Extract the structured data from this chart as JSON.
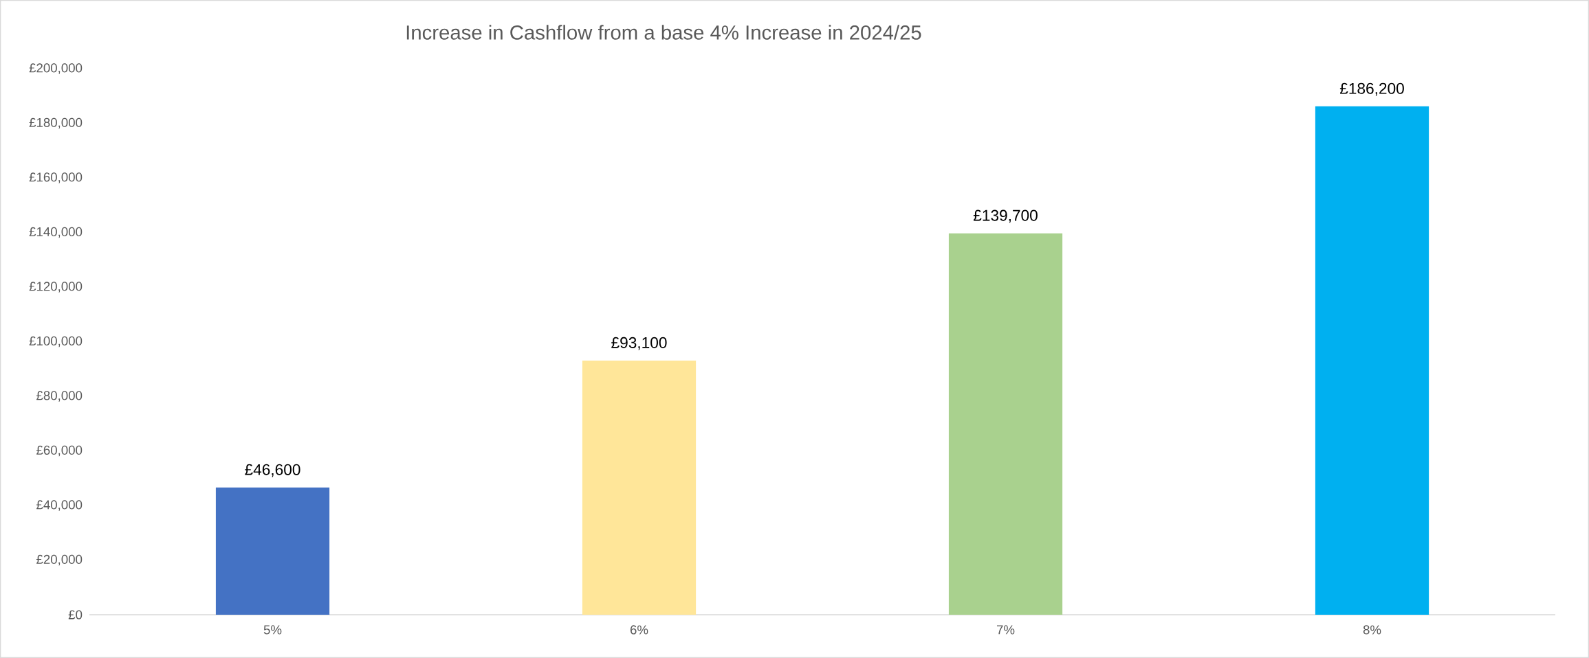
{
  "chart_data": {
    "type": "bar",
    "title": "Increase in Cashflow from a base 4% Increase in 2024/25",
    "categories": [
      "5%",
      "6%",
      "7%",
      "8%"
    ],
    "values": [
      46600,
      93100,
      139700,
      186200
    ],
    "colors": [
      "#4472c4",
      "#ffe699",
      "#a9d18e",
      "#00b0f0"
    ],
    "value_labels": [
      "£46,600",
      "£93,100",
      "£139,700",
      "£186,200"
    ],
    "ylim": [
      0,
      200000
    ],
    "yticks": [
      {
        "value": 0,
        "label": "£0"
      },
      {
        "value": 20000,
        "label": "£20,000"
      },
      {
        "value": 40000,
        "label": "£40,000"
      },
      {
        "value": 60000,
        "label": "£60,000"
      },
      {
        "value": 80000,
        "label": "£80,000"
      },
      {
        "value": 100000,
        "label": "£100,000"
      },
      {
        "value": 120000,
        "label": "£120,000"
      },
      {
        "value": 140000,
        "label": "£140,000"
      },
      {
        "value": 160000,
        "label": "£160,000"
      },
      {
        "value": 180000,
        "label": "£180,000"
      },
      {
        "value": 200000,
        "label": "£200,000"
      }
    ],
    "grid": false
  }
}
